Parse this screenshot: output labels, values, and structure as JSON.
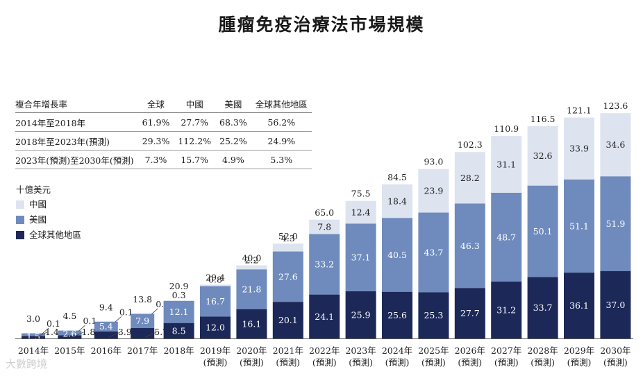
{
  "title": "腫瘤免疫治療法市場規模",
  "unit_label": "十億美元",
  "colors": {
    "china": "#dde3ef",
    "us": "#6f8bbd",
    "rest": "#1c2858"
  },
  "legend": [
    {
      "key": "china",
      "label": "中國"
    },
    {
      "key": "us",
      "label": "美國"
    },
    {
      "key": "rest",
      "label": "全球其他地區"
    }
  ],
  "cagr_table": {
    "header": [
      "複合年增長率",
      "全球",
      "中國",
      "美國",
      "全球其他地區"
    ],
    "rows": [
      [
        "2014年至2018年",
        "61.9%",
        "27.7%",
        "68.3%",
        "56.2%"
      ],
      [
        "2018年至2023年(預測)",
        "29.3%",
        "112.2%",
        "25.2%",
        "24.9%"
      ],
      [
        "2023年(預測)至2030年(預測)",
        "7.3%",
        "15.7%",
        "4.9%",
        "5.3%"
      ]
    ]
  },
  "watermark": "大數跨境",
  "chart_data": {
    "type": "bar",
    "stacked": true,
    "title": "腫瘤免疫治療法市場規模",
    "ylabel": "十億美元",
    "ylim": [
      0,
      130
    ],
    "categories": [
      "2014年",
      "2015年",
      "2016年",
      "2017年",
      "2018年",
      "2019年",
      "2020年",
      "2021年",
      "2022年",
      "2023年",
      "2024年",
      "2025年",
      "2026年",
      "2027年",
      "2028年",
      "2029年",
      "2030年"
    ],
    "category_sub": [
      "",
      "",
      "",
      "",
      "",
      "(預測)",
      "(預測)",
      "(預測)",
      "(預測)",
      "(預測)",
      "(預測)",
      "(預測)",
      "(預測)",
      "(預測)",
      "(預測)",
      "(預測)",
      "(預測)"
    ],
    "totals": [
      3.0,
      4.5,
      9.4,
      13.8,
      20.9,
      29.4,
      40.0,
      52.0,
      65.0,
      75.5,
      84.5,
      93.0,
      102.3,
      110.9,
      116.5,
      121.1,
      123.6
    ],
    "series": [
      {
        "name": "全球其他地區",
        "key": "rest",
        "values": [
          1.4,
          1.8,
          3.9,
          5.7,
          8.5,
          12.0,
          16.1,
          20.1,
          24.1,
          25.9,
          25.6,
          25.3,
          27.7,
          31.2,
          33.7,
          36.1,
          37.0
        ]
      },
      {
        "name": "美國",
        "key": "us",
        "values": [
          1.5,
          2.6,
          5.4,
          7.9,
          12.1,
          16.7,
          21.8,
          27.6,
          33.2,
          37.1,
          40.5,
          43.7,
          46.3,
          48.7,
          50.1,
          51.1,
          51.9
        ]
      },
      {
        "name": "中國",
        "key": "china",
        "values": [
          0.1,
          0.1,
          0.1,
          0.1,
          0.3,
          0.8,
          2.2,
          4.3,
          7.8,
          12.4,
          18.4,
          23.9,
          28.2,
          31.1,
          32.6,
          33.9,
          34.6
        ]
      }
    ]
  }
}
